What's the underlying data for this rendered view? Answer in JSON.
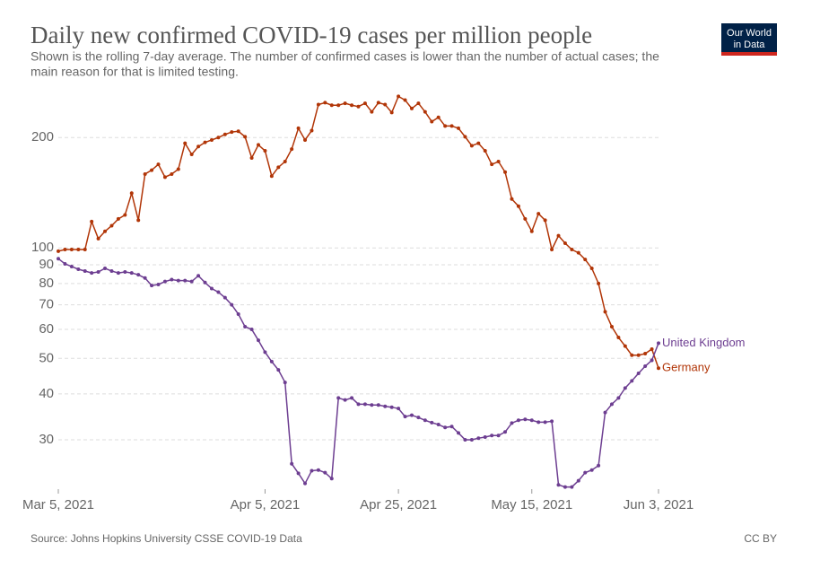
{
  "chart_data": {
    "type": "line",
    "title": "Daily new confirmed COVID-19 cases per million people",
    "subtitle": [
      "Shown is the rolling 7-day average. The number of confirmed cases is lower than the number of actual cases; the",
      "main reason for that is limited testing."
    ],
    "logo": [
      "Our World",
      "in Data"
    ],
    "source": "Source: Johns Hopkins University CSSE COVID-19 Data",
    "license": "CC BY",
    "log_y": true,
    "grid": true,
    "xlim": [
      "2021-03-05",
      "2021-06-03"
    ],
    "xticks": [
      {
        "value": "2021-03-05",
        "label": "Mar 5, 2021"
      },
      {
        "value": "2021-04-05",
        "label": "Apr 5, 2021"
      },
      {
        "value": "2021-04-25",
        "label": "Apr 25, 2021"
      },
      {
        "value": "2021-05-15",
        "label": "May 15, 2021"
      },
      {
        "value": "2021-06-03",
        "label": "Jun 3, 2021"
      }
    ],
    "ylim": [
      22,
      270
    ],
    "yticks": [
      30,
      40,
      50,
      60,
      70,
      80,
      90,
      100,
      200
    ],
    "x": [
      "2021-03-05",
      "2021-03-06",
      "2021-03-07",
      "2021-03-08",
      "2021-03-09",
      "2021-03-10",
      "2021-03-11",
      "2021-03-12",
      "2021-03-13",
      "2021-03-14",
      "2021-03-15",
      "2021-03-16",
      "2021-03-17",
      "2021-03-18",
      "2021-03-19",
      "2021-03-20",
      "2021-03-21",
      "2021-03-22",
      "2021-03-23",
      "2021-03-24",
      "2021-03-25",
      "2021-03-26",
      "2021-03-27",
      "2021-03-28",
      "2021-03-29",
      "2021-03-30",
      "2021-03-31",
      "2021-04-01",
      "2021-04-02",
      "2021-04-03",
      "2021-04-04",
      "2021-04-05",
      "2021-04-06",
      "2021-04-07",
      "2021-04-08",
      "2021-04-09",
      "2021-04-10",
      "2021-04-11",
      "2021-04-12",
      "2021-04-13",
      "2021-04-14",
      "2021-04-15",
      "2021-04-16",
      "2021-04-17",
      "2021-04-18",
      "2021-04-19",
      "2021-04-20",
      "2021-04-21",
      "2021-04-22",
      "2021-04-23",
      "2021-04-24",
      "2021-04-25",
      "2021-04-26",
      "2021-04-27",
      "2021-04-28",
      "2021-04-29",
      "2021-04-30",
      "2021-05-01",
      "2021-05-02",
      "2021-05-03",
      "2021-05-04",
      "2021-05-05",
      "2021-05-06",
      "2021-05-07",
      "2021-05-08",
      "2021-05-09",
      "2021-05-10",
      "2021-05-11",
      "2021-05-12",
      "2021-05-13",
      "2021-05-14",
      "2021-05-15",
      "2021-05-16",
      "2021-05-17",
      "2021-05-18",
      "2021-05-19",
      "2021-05-20",
      "2021-05-21",
      "2021-05-22",
      "2021-05-23",
      "2021-05-24",
      "2021-05-25",
      "2021-05-26",
      "2021-05-27",
      "2021-05-28",
      "2021-05-29",
      "2021-05-30",
      "2021-05-31",
      "2021-06-01",
      "2021-06-02",
      "2021-06-03"
    ],
    "series": [
      {
        "name": "Germany",
        "color": "#b13507",
        "values": [
          98,
          99,
          99,
          99,
          99,
          118,
          106,
          111,
          115,
          120,
          123,
          141,
          119,
          159,
          163,
          169,
          156,
          159,
          164,
          193,
          180,
          189,
          194,
          197,
          200,
          204,
          207,
          208,
          201,
          176,
          191,
          184,
          157,
          166,
          172,
          186,
          212,
          197,
          209,
          246,
          249,
          245,
          245,
          248,
          245,
          243,
          248,
          235,
          249,
          246,
          234,
          259,
          253,
          240,
          248,
          235,
          221,
          227,
          215,
          215,
          212,
          201,
          190,
          193,
          184,
          169,
          172,
          161,
          136,
          130,
          120,
          111,
          124,
          119,
          99,
          108,
          103,
          99,
          97,
          93,
          88,
          80,
          67,
          61,
          57,
          54,
          51,
          51,
          51.5,
          53,
          47
        ]
      },
      {
        "name": "United Kingdom",
        "color": "#6d3e91",
        "values": [
          93.5,
          90.5,
          89,
          87.5,
          86.5,
          85.5,
          86,
          88,
          86.5,
          85.5,
          86,
          85.5,
          84.5,
          82.8,
          79,
          79.5,
          81,
          82,
          81.5,
          81.5,
          81,
          84,
          80.5,
          77.5,
          75.8,
          73.2,
          70,
          66,
          61,
          60,
          56,
          52,
          49,
          46.5,
          43,
          25.8,
          24.3,
          22.8,
          24.7,
          24.8,
          24.4,
          23.5,
          39,
          38.5,
          39,
          37.5,
          37.5,
          37.3,
          37.3,
          37,
          36.8,
          36.5,
          34.7,
          35,
          34.5,
          33.9,
          33.4,
          33,
          32.4,
          32.6,
          31.3,
          30,
          30,
          30.3,
          30.5,
          30.8,
          30.8,
          31.5,
          33.3,
          33.9,
          34.1,
          33.9,
          33.5,
          33.5,
          33.7,
          22.6,
          22.3,
          22.3,
          23.2,
          24.4,
          24.8,
          25.5,
          35.6,
          37.5,
          39,
          41.5,
          43.4,
          45.5,
          47.6,
          49.4,
          55
        ]
      }
    ]
  }
}
